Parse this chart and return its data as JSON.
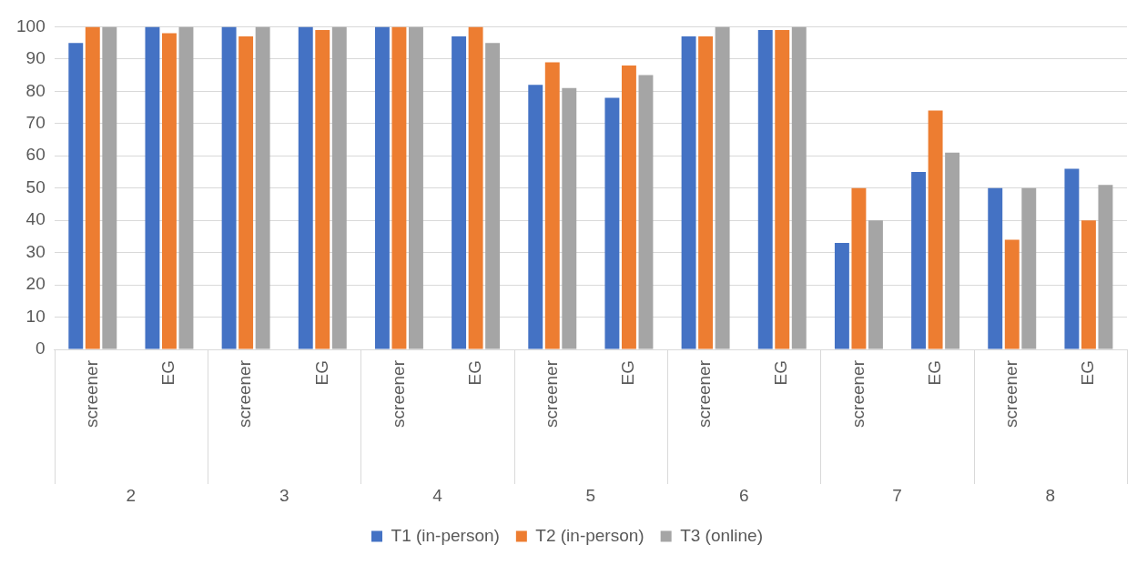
{
  "chart_data": {
    "type": "bar",
    "categories": [
      "screener",
      "EG",
      "screener",
      "EG",
      "screener",
      "EG",
      "screener",
      "EG",
      "screener",
      "EG",
      "screener",
      "EG",
      "screener",
      "EG"
    ],
    "annotations": [
      "2",
      "3",
      "4",
      "5",
      "6",
      "7",
      "8"
    ],
    "series": [
      {
        "name": "T1 (in-person)",
        "color": "#4472c4",
        "values": [
          95,
          100,
          100,
          100,
          100,
          97,
          82,
          78,
          97,
          99,
          33,
          55,
          50,
          56
        ]
      },
      {
        "name": "T2 (in-person)",
        "color": "#ed7d31",
        "values": [
          100,
          98,
          97,
          99,
          100,
          100,
          89,
          88,
          97,
          99,
          50,
          74,
          34,
          40
        ]
      },
      {
        "name": "T3 (online)",
        "color": "#a5a5a5",
        "values": [
          100,
          100,
          100,
          100,
          100,
          95,
          81,
          85,
          100,
          100,
          40,
          61,
          50,
          51
        ]
      }
    ],
    "ylim": [
      0,
      100
    ],
    "yticks": [
      0,
      10,
      20,
      30,
      40,
      50,
      60,
      70,
      80,
      90,
      100
    ],
    "grid": "y",
    "legend": "bottom"
  }
}
